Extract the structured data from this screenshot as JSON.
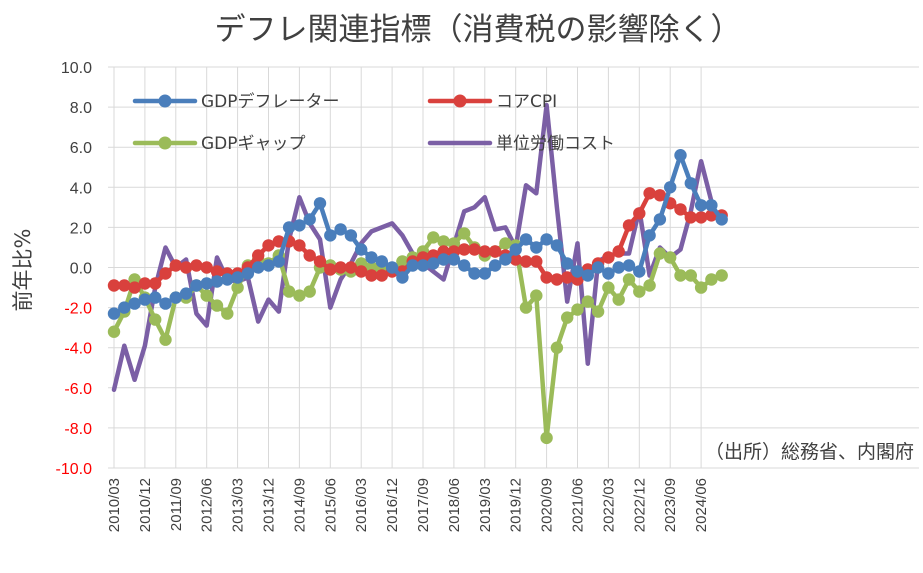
{
  "chart_data": {
    "type": "line",
    "title": "デフレ関連指標（消費税の影響除く）",
    "ylabel": "前年比%",
    "source": "（出所）総務省、内閣府",
    "ylim": [
      -10,
      10
    ],
    "y_ticks": [
      "10.0",
      "8.0",
      "6.0",
      "4.0",
      "2.0",
      "0.0",
      "-2.0",
      "-4.0",
      "-6.0",
      "-8.0",
      "-10.0"
    ],
    "y_ticks_value": [
      10,
      8,
      6,
      4,
      2,
      0,
      -2,
      -4,
      -6,
      -8,
      -10
    ],
    "tick_colors": {
      "positive": "#404040",
      "negative": "#ff0000"
    },
    "x_start": "2010/03",
    "x_tick_labels": [
      "2010/03",
      "2010/12",
      "2011/09",
      "2012/06",
      "2013/03",
      "2013/12",
      "2014/09",
      "2015/06",
      "2016/03",
      "2016/12",
      "2017/09",
      "2018/06",
      "2019/03",
      "2019/12",
      "2020/09",
      "2021/06",
      "2022/03",
      "2022/12",
      "2023/09",
      "2024/06"
    ],
    "series": [
      {
        "name": "GDPデフレーター",
        "color": "#4a7ebb",
        "marker": true,
        "values": [
          -2.3,
          -2.0,
          -1.8,
          -1.6,
          -1.5,
          -1.8,
          -1.5,
          -1.3,
          -0.9,
          -0.8,
          -0.7,
          -0.6,
          -0.5,
          -0.3,
          0.0,
          0.1,
          0.3,
          2.0,
          2.1,
          2.4,
          3.2,
          1.6,
          1.9,
          1.6,
          0.9,
          0.5,
          0.3,
          0.0,
          -0.5,
          0.1,
          0.1,
          0.2,
          0.4,
          0.4,
          0.1,
          -0.3,
          -0.3,
          0.1,
          0.4,
          0.9,
          1.4,
          1.0,
          1.4,
          1.1,
          0.2,
          -0.2,
          -0.4,
          0.0,
          -0.3,
          0.0,
          0.1,
          -0.2,
          1.6,
          2.4,
          4.0,
          5.6,
          4.2,
          3.1,
          3.1,
          2.4
        ]
      },
      {
        "name": "コアCPI",
        "color": "#d9413d",
        "marker": true,
        "values": [
          -0.9,
          -0.9,
          -1.0,
          -0.8,
          -0.8,
          -0.3,
          0.1,
          0.0,
          0.1,
          0.0,
          -0.2,
          -0.3,
          -0.3,
          0.0,
          0.6,
          1.1,
          1.3,
          1.3,
          1.1,
          0.6,
          0.3,
          -0.1,
          0.0,
          0.0,
          -0.2,
          -0.4,
          -0.4,
          -0.2,
          -0.2,
          0.3,
          0.5,
          0.6,
          0.8,
          0.8,
          0.9,
          0.9,
          0.8,
          0.8,
          0.6,
          0.4,
          0.3,
          0.3,
          -0.5,
          -0.6,
          -0.5,
          -0.6,
          -0.1,
          0.2,
          0.5,
          0.8,
          2.1,
          2.7,
          3.7,
          3.6,
          3.2,
          2.9,
          2.5,
          2.5,
          2.6,
          2.6
        ]
      },
      {
        "name": "GDPギャップ",
        "color": "#9bbb59",
        "marker": true,
        "values": [
          -3.2,
          -2.2,
          -0.6,
          -1.5,
          -2.6,
          -3.6,
          -1.5,
          -1.5,
          -0.9,
          -1.4,
          -1.9,
          -2.3,
          -1.0,
          0.1,
          0.4,
          0.2,
          0.6,
          -1.2,
          -1.4,
          -1.2,
          0.0,
          0.1,
          -0.1,
          -0.2,
          0.2,
          0.0,
          -0.1,
          -0.1,
          0.3,
          0.5,
          0.8,
          1.5,
          1.3,
          1.2,
          1.7,
          1.0,
          0.6,
          0.8,
          1.2,
          1.1,
          -2.0,
          -1.4,
          -8.5,
          -4.0,
          -2.5,
          -2.1,
          -1.7,
          -2.2,
          -1.0,
          -1.6,
          -0.6,
          -1.2,
          -0.9,
          0.7,
          0.5,
          -0.4,
          -0.4,
          -1.0,
          -0.6,
          -0.4
        ]
      },
      {
        "name": "単位労働コスト",
        "color": "#7b5fa5",
        "marker": false,
        "values": [
          -6.1,
          -3.9,
          -5.6,
          -3.9,
          -1.0,
          1.0,
          0.0,
          0.4,
          -2.3,
          -2.9,
          0.5,
          -0.6,
          -0.7,
          -0.5,
          -2.7,
          -1.6,
          -2.2,
          1.4,
          3.5,
          2.2,
          1.4,
          -2.0,
          -0.6,
          0.2,
          1.2,
          1.8,
          2.0,
          2.2,
          1.6,
          0.7,
          0.2,
          -0.2,
          -0.6,
          1.1,
          2.8,
          3.0,
          3.5,
          1.9,
          2.0,
          1.0,
          4.1,
          3.7,
          8.1,
          3.0,
          -1.7,
          1.2,
          -4.8,
          0.3,
          0.6,
          0.7,
          0.7,
          2.9,
          -0.4,
          1.0,
          0.5,
          0.9,
          2.8,
          5.3,
          3.3
        ]
      }
    ]
  }
}
